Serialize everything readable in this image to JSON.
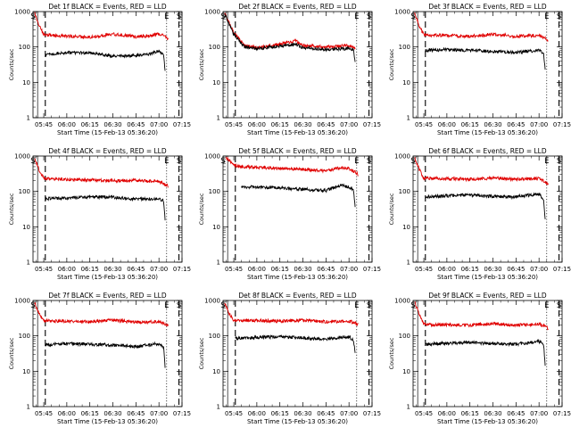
{
  "figure": {
    "background": "#ffffff",
    "axis_color": "#000000"
  },
  "chart_data": [
    {
      "type": "line",
      "title": "Det 1f BLACK = Events, RED = LLD",
      "xlabel": "Start Time (15-Feb-13 05:36:20)",
      "ylabel": "Counts/sec",
      "yscale": "log",
      "ylim": [
        1,
        1000
      ],
      "xlim": [
        "05:38",
        "07:15"
      ],
      "xticks": [
        "05:45",
        "06:00",
        "06:15",
        "06:30",
        "06:45",
        "07:00",
        "07:15"
      ],
      "yticks": [
        "1",
        "10",
        "100",
        "1000"
      ],
      "grid": false,
      "markers": [
        {
          "label": "S",
          "time": "05:38",
          "style": "solid"
        },
        {
          "label": "E",
          "time": "07:05",
          "style": "solid"
        },
        {
          "label": "S",
          "time": "07:13",
          "style": "solid"
        }
      ],
      "vlines": [
        {
          "time": "05:41",
          "style": "solid"
        },
        {
          "time": "05:46",
          "style": "dashed"
        },
        {
          "time": "07:05",
          "style": "dotted"
        },
        {
          "time": "07:13",
          "style": "dashed"
        }
      ],
      "series": [
        {
          "color": "#e00000",
          "x": [
            "05:39",
            "05:42",
            "05:45",
            "06:00",
            "06:15",
            "06:30",
            "06:45",
            "06:55",
            "07:00",
            "07:04",
            "07:06"
          ],
          "values": [
            900,
            400,
            220,
            200,
            190,
            230,
            195,
            210,
            240,
            200,
            170
          ]
        },
        {
          "color": "#000000",
          "x": [
            "05:46",
            "06:00",
            "06:15",
            "06:30",
            "06:45",
            "06:55",
            "07:00",
            "07:03",
            "07:04"
          ],
          "values": [
            62,
            70,
            68,
            55,
            57,
            65,
            78,
            60,
            20
          ]
        }
      ]
    },
    {
      "type": "line",
      "title": "Det 2f BLACK = Events, RED = LLD",
      "xlabel": "Start Time (15-Feb-13 05:36:20)",
      "ylabel": "Counts/sec",
      "yscale": "log",
      "ylim": [
        1,
        1000
      ],
      "xlim": [
        "05:38",
        "07:15"
      ],
      "xticks": [
        "05:45",
        "06:00",
        "06:15",
        "06:30",
        "06:45",
        "07:00",
        "07:15"
      ],
      "yticks": [
        "1",
        "10",
        "100",
        "1000"
      ],
      "grid": false,
      "markers": [
        {
          "label": "S",
          "time": "05:38",
          "style": "solid"
        },
        {
          "label": "E",
          "time": "07:05",
          "style": "solid"
        },
        {
          "label": "S",
          "time": "07:13",
          "style": "solid"
        }
      ],
      "vlines": [
        {
          "time": "05:41",
          "style": "solid"
        },
        {
          "time": "05:46",
          "style": "dashed"
        },
        {
          "time": "07:05",
          "style": "dotted"
        },
        {
          "time": "07:13",
          "style": "dashed"
        }
      ],
      "series": [
        {
          "color": "#e00000",
          "x": [
            "05:39",
            "05:45",
            "05:52",
            "06:00",
            "06:15",
            "06:25",
            "06:30",
            "06:45",
            "07:00",
            "07:04"
          ],
          "values": [
            900,
            250,
            110,
            95,
            120,
            150,
            110,
            100,
            110,
            90
          ]
        },
        {
          "color": "#000000",
          "x": [
            "05:39",
            "05:45",
            "05:52",
            "06:00",
            "06:15",
            "06:25",
            "06:30",
            "06:45",
            "07:00",
            "07:03",
            "07:04"
          ],
          "values": [
            850,
            230,
            100,
            90,
            105,
            120,
            95,
            85,
            90,
            85,
            35
          ]
        }
      ]
    },
    {
      "type": "line",
      "title": "Det 3f BLACK = Events, RED = LLD",
      "xlabel": "Start Time (15-Feb-13 05:36:20)",
      "ylabel": "Counts/sec",
      "yscale": "log",
      "ylim": [
        1,
        1000
      ],
      "xlim": [
        "05:38",
        "07:15"
      ],
      "xticks": [
        "05:45",
        "06:00",
        "06:15",
        "06:30",
        "06:45",
        "07:00",
        "07:15"
      ],
      "yticks": [
        "1",
        "10",
        "100",
        "1000"
      ],
      "grid": false,
      "markers": [
        {
          "label": "S",
          "time": "05:38",
          "style": "solid"
        },
        {
          "label": "E",
          "time": "07:05",
          "style": "solid"
        },
        {
          "label": "S",
          "time": "07:13",
          "style": "solid"
        }
      ],
      "vlines": [
        {
          "time": "05:41",
          "style": "solid"
        },
        {
          "time": "05:46",
          "style": "dashed"
        },
        {
          "time": "07:05",
          "style": "dotted"
        },
        {
          "time": "07:13",
          "style": "dashed"
        }
      ],
      "series": [
        {
          "color": "#e00000",
          "x": [
            "05:39",
            "05:42",
            "05:45",
            "06:00",
            "06:15",
            "06:30",
            "06:45",
            "07:00",
            "07:04",
            "07:06"
          ],
          "values": [
            900,
            400,
            220,
            210,
            200,
            230,
            200,
            215,
            180,
            150
          ]
        },
        {
          "color": "#000000",
          "x": [
            "05:46",
            "06:00",
            "06:15",
            "06:30",
            "06:45",
            "07:00",
            "07:03",
            "07:04"
          ],
          "values": [
            80,
            85,
            80,
            75,
            70,
            80,
            65,
            22
          ]
        }
      ]
    },
    {
      "type": "line",
      "title": "Det 4f BLACK = Events, RED = LLD",
      "xlabel": "Start Time (15-Feb-13 05:36:20)",
      "ylabel": "Counts/sec",
      "yscale": "log",
      "ylim": [
        1,
        1000
      ],
      "xlim": [
        "05:38",
        "07:15"
      ],
      "xticks": [
        "05:45",
        "06:00",
        "06:15",
        "06:30",
        "06:45",
        "07:00",
        "07:15"
      ],
      "yticks": [
        "1",
        "10",
        "100",
        "1000"
      ],
      "grid": false,
      "markers": [
        {
          "label": "S",
          "time": "05:38",
          "style": "solid"
        },
        {
          "label": "E",
          "time": "07:05",
          "style": "solid"
        },
        {
          "label": "S",
          "time": "07:13",
          "style": "solid"
        }
      ],
      "vlines": [
        {
          "time": "05:41",
          "style": "solid"
        },
        {
          "time": "05:46",
          "style": "dashed"
        },
        {
          "time": "07:05",
          "style": "dotted"
        },
        {
          "time": "07:13",
          "style": "dashed"
        }
      ],
      "series": [
        {
          "color": "#e00000",
          "x": [
            "05:39",
            "05:42",
            "05:45",
            "06:00",
            "06:15",
            "06:30",
            "06:45",
            "07:00",
            "07:04",
            "07:06"
          ],
          "values": [
            900,
            400,
            230,
            220,
            210,
            200,
            205,
            190,
            160,
            140
          ]
        },
        {
          "color": "#000000",
          "x": [
            "05:46",
            "06:00",
            "06:15",
            "06:30",
            "06:45",
            "07:00",
            "07:03",
            "07:04"
          ],
          "values": [
            62,
            65,
            70,
            68,
            60,
            62,
            55,
            15
          ]
        }
      ]
    },
    {
      "type": "line",
      "title": "Det 5f BLACK = Events, RED = LLD",
      "xlabel": "Start Time (15-Feb-13 05:36:20)",
      "ylabel": "Counts/sec",
      "yscale": "log",
      "ylim": [
        1,
        1000
      ],
      "xlim": [
        "05:38",
        "07:15"
      ],
      "xticks": [
        "05:45",
        "06:00",
        "06:15",
        "06:30",
        "06:45",
        "07:00",
        "07:15"
      ],
      "yticks": [
        "1",
        "10",
        "100",
        "1000"
      ],
      "grid": false,
      "markers": [
        {
          "label": "S",
          "time": "05:38",
          "style": "solid"
        },
        {
          "label": "E",
          "time": "07:05",
          "style": "solid"
        },
        {
          "label": "S",
          "time": "07:13",
          "style": "solid"
        }
      ],
      "vlines": [
        {
          "time": "05:41",
          "style": "solid"
        },
        {
          "time": "05:46",
          "style": "dashed"
        },
        {
          "time": "07:05",
          "style": "dotted"
        },
        {
          "time": "07:13",
          "style": "dashed"
        }
      ],
      "series": [
        {
          "color": "#e00000",
          "x": [
            "05:40",
            "05:45",
            "05:50",
            "06:00",
            "06:15",
            "06:30",
            "06:45",
            "06:55",
            "07:00",
            "07:04",
            "07:06"
          ],
          "values": [
            900,
            550,
            500,
            480,
            450,
            420,
            380,
            470,
            450,
            350,
            300
          ]
        },
        {
          "color": "#000000",
          "x": [
            "05:50",
            "06:00",
            "06:15",
            "06:30",
            "06:45",
            "06:55",
            "07:00",
            "07:03",
            "07:04"
          ],
          "values": [
            130,
            135,
            125,
            115,
            105,
            150,
            130,
            110,
            35
          ]
        }
      ]
    },
    {
      "type": "line",
      "title": "Det 6f BLACK = Events, RED = LLD",
      "xlabel": "Start Time (15-Feb-13 05:36:20)",
      "ylabel": "Counts/sec",
      "yscale": "log",
      "ylim": [
        1,
        1000
      ],
      "xlim": [
        "05:38",
        "07:15"
      ],
      "xticks": [
        "05:45",
        "06:00",
        "06:15",
        "06:30",
        "06:45",
        "07:00",
        "07:15"
      ],
      "yticks": [
        "1",
        "10",
        "100",
        "1000"
      ],
      "grid": false,
      "markers": [
        {
          "label": "S",
          "time": "05:38",
          "style": "solid"
        },
        {
          "label": "E",
          "time": "07:05",
          "style": "solid"
        },
        {
          "label": "S",
          "time": "07:13",
          "style": "solid"
        }
      ],
      "vlines": [
        {
          "time": "05:41",
          "style": "solid"
        },
        {
          "time": "05:46",
          "style": "dashed"
        },
        {
          "time": "07:05",
          "style": "dotted"
        },
        {
          "time": "07:13",
          "style": "dashed"
        }
      ],
      "series": [
        {
          "color": "#e00000",
          "x": [
            "05:39",
            "05:42",
            "05:45",
            "06:00",
            "06:15",
            "06:30",
            "06:45",
            "07:00",
            "07:04",
            "07:06"
          ],
          "values": [
            900,
            420,
            240,
            230,
            220,
            240,
            220,
            230,
            190,
            160
          ]
        },
        {
          "color": "#000000",
          "x": [
            "05:46",
            "06:00",
            "06:15",
            "06:30",
            "06:45",
            "07:00",
            "07:03",
            "07:04"
          ],
          "values": [
            70,
            75,
            80,
            72,
            70,
            85,
            60,
            16
          ]
        }
      ]
    },
    {
      "type": "line",
      "title": "Det 7f BLACK = Events, RED = LLD",
      "xlabel": "Start Time (15-Feb-13 05:36:20)",
      "ylabel": "Counts/sec",
      "yscale": "log",
      "ylim": [
        1,
        1000
      ],
      "xlim": [
        "05:38",
        "07:15"
      ],
      "xticks": [
        "05:45",
        "06:00",
        "06:15",
        "06:30",
        "06:45",
        "07:00",
        "07:15"
      ],
      "yticks": [
        "1",
        "10",
        "100",
        "1000"
      ],
      "grid": false,
      "markers": [
        {
          "label": "S",
          "time": "05:38",
          "style": "solid"
        },
        {
          "label": "E",
          "time": "07:05",
          "style": "solid"
        },
        {
          "label": "S",
          "time": "07:13",
          "style": "solid"
        }
      ],
      "vlines": [
        {
          "time": "05:41",
          "style": "solid"
        },
        {
          "time": "05:46",
          "style": "dashed"
        },
        {
          "time": "07:05",
          "style": "dotted"
        },
        {
          "time": "07:13",
          "style": "dashed"
        }
      ],
      "series": [
        {
          "color": "#e00000",
          "x": [
            "05:39",
            "05:42",
            "05:45",
            "06:00",
            "06:15",
            "06:30",
            "06:45",
            "07:00",
            "07:04",
            "07:06"
          ],
          "values": [
            900,
            420,
            270,
            260,
            250,
            280,
            240,
            255,
            220,
            190
          ]
        },
        {
          "color": "#000000",
          "x": [
            "05:46",
            "06:00",
            "06:15",
            "06:30",
            "06:45",
            "07:00",
            "07:03",
            "07:04"
          ],
          "values": [
            55,
            60,
            58,
            55,
            50,
            60,
            48,
            13
          ]
        }
      ]
    },
    {
      "type": "line",
      "title": "Det 8f BLACK = Events, RED = LLD",
      "xlabel": "Start Time (15-Feb-13 05:36:20)",
      "ylabel": "Counts/sec",
      "yscale": "log",
      "ylim": [
        1,
        1000
      ],
      "xlim": [
        "05:38",
        "07:15"
      ],
      "xticks": [
        "05:45",
        "06:00",
        "06:15",
        "06:30",
        "06:45",
        "07:00",
        "07:15"
      ],
      "yticks": [
        "1",
        "10",
        "100",
        "1000"
      ],
      "grid": false,
      "markers": [
        {
          "label": "S",
          "time": "05:38",
          "style": "solid"
        },
        {
          "label": "E",
          "time": "07:05",
          "style": "solid"
        },
        {
          "label": "S",
          "time": "07:13",
          "style": "solid"
        }
      ],
      "vlines": [
        {
          "time": "05:41",
          "style": "solid"
        },
        {
          "time": "05:46",
          "style": "dashed"
        },
        {
          "time": "07:05",
          "style": "dotted"
        },
        {
          "time": "07:13",
          "style": "dashed"
        }
      ],
      "series": [
        {
          "color": "#e00000",
          "x": [
            "05:39",
            "05:42",
            "05:45",
            "06:00",
            "06:15",
            "06:30",
            "06:45",
            "07:00",
            "07:04",
            "07:06"
          ],
          "values": [
            900,
            420,
            280,
            270,
            260,
            280,
            250,
            260,
            230,
            200
          ]
        },
        {
          "color": "#000000",
          "x": [
            "05:46",
            "06:00",
            "06:15",
            "06:30",
            "06:45",
            "07:00",
            "07:03",
            "07:04"
          ],
          "values": [
            85,
            90,
            95,
            88,
            80,
            95,
            75,
            30
          ]
        }
      ]
    },
    {
      "type": "line",
      "title": "Det 9f BLACK = Events, RED = LLD",
      "xlabel": "Start Time (15-Feb-13 05:36:20)",
      "ylabel": "Counts/sec",
      "yscale": "log",
      "ylim": [
        1,
        1000
      ],
      "xlim": [
        "05:38",
        "07:15"
      ],
      "xticks": [
        "05:45",
        "06:00",
        "06:15",
        "06:30",
        "06:45",
        "07:00",
        "07:15"
      ],
      "yticks": [
        "1",
        "10",
        "100",
        "1000"
      ],
      "grid": false,
      "markers": [
        {
          "label": "S",
          "time": "05:38",
          "style": "solid"
        },
        {
          "label": "E",
          "time": "07:05",
          "style": "solid"
        },
        {
          "label": "S",
          "time": "07:13",
          "style": "solid"
        }
      ],
      "vlines": [
        {
          "time": "05:41",
          "style": "solid"
        },
        {
          "time": "05:46",
          "style": "dashed"
        },
        {
          "time": "07:05",
          "style": "dotted"
        },
        {
          "time": "07:13",
          "style": "dashed"
        }
      ],
      "series": [
        {
          "color": "#e00000",
          "x": [
            "05:39",
            "05:42",
            "05:45",
            "06:00",
            "06:15",
            "06:30",
            "06:45",
            "07:00",
            "07:04",
            "07:06"
          ],
          "values": [
            900,
            420,
            210,
            205,
            200,
            220,
            200,
            215,
            190,
            160
          ]
        },
        {
          "color": "#000000",
          "x": [
            "05:46",
            "06:00",
            "06:15",
            "06:30",
            "06:45",
            "07:00",
            "07:03",
            "07:04"
          ],
          "values": [
            58,
            62,
            65,
            60,
            58,
            70,
            55,
            15
          ]
        }
      ]
    }
  ]
}
